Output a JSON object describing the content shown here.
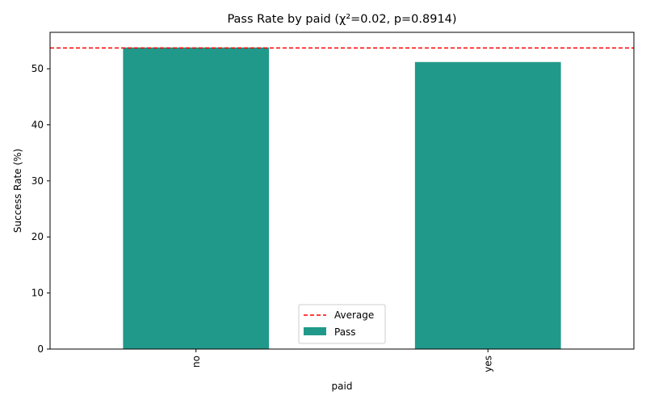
{
  "chart_data": {
    "type": "bar",
    "title": "Pass Rate by paid (χ²=0.02, p=0.8914)",
    "xlabel": "paid",
    "ylabel": "Success Rate (%)",
    "categories": [
      "no",
      "yes"
    ],
    "series": [
      {
        "name": "Pass",
        "values": [
          53.8,
          51.2
        ],
        "color": "#21998a"
      }
    ],
    "reference_line": {
      "name": "Average",
      "value": 53.7,
      "color": "#ff0000",
      "style": "dashed"
    },
    "ylim": [
      0,
      56.5
    ],
    "yticks": [
      0,
      10,
      20,
      30,
      40,
      50
    ],
    "xtick_rotation": 90,
    "grid": false,
    "legend": {
      "placement": "bottom-center",
      "entries": [
        "Average",
        "Pass"
      ]
    }
  }
}
